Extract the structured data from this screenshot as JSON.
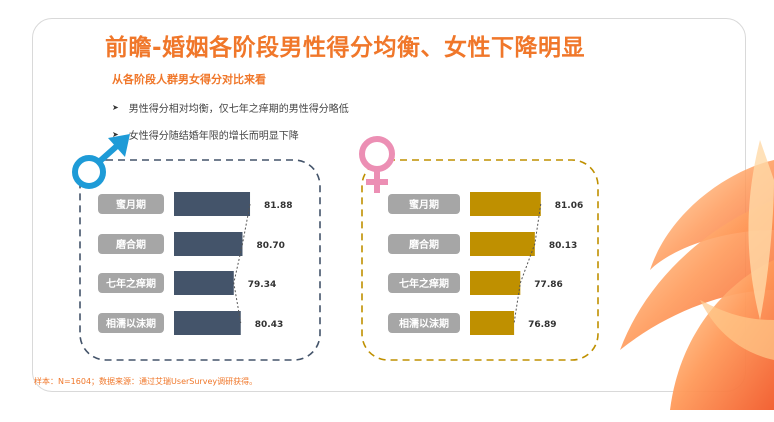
{
  "title": "前瞻-婚姻各阶段男性得分均衡、女性下降明显",
  "subtitle": "从各阶段人群男女得分对比来看",
  "bullets": [
    "男性得分相对均衡，仅七年之痒期的男性得分略低",
    "女性得分随结婚年限的增长而明显下降"
  ],
  "source": "样本：N=1604；数据来源：通过艾瑞UserSurvey调研获得。",
  "icons": {
    "male": "male-symbol-icon",
    "female": "female-symbol-icon"
  },
  "colors": {
    "accent": "#f0772a",
    "male_bar": "#44546a",
    "female_bar": "#bf9000",
    "label_pill": "#a6a6a6",
    "male_symbol": "#1e9bd7",
    "female_symbol": "#ec8fb4"
  },
  "chart_data": [
    {
      "type": "bar",
      "orientation": "horizontal",
      "categories": [
        "蜜月期",
        "磨合期",
        "七年之痒期",
        "相濡以沫期"
      ],
      "values": [
        81.88,
        80.7,
        79.34,
        80.43
      ],
      "value_labels": [
        "81.88",
        "80.70",
        "79.34",
        "80.43"
      ]
    },
    {
      "type": "bar",
      "orientation": "horizontal",
      "categories": [
        "蜜月期",
        "磨合期",
        "七年之痒期",
        "相濡以沫期"
      ],
      "values": [
        81.06,
        80.13,
        77.86,
        76.89
      ],
      "value_labels": [
        "81.06",
        "80.13",
        "77.86",
        "76.89"
      ]
    }
  ]
}
